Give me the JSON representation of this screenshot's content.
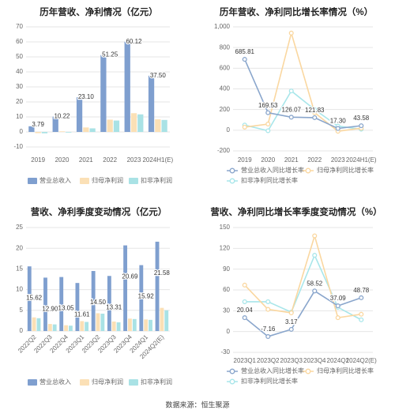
{
  "colors": {
    "revenue": "#7f9fcf",
    "net_profit": "#fbe0b6",
    "deducted_profit": "#a9e2e5",
    "revenue_line": "#8aa6cc",
    "net_line": "#fad7a0",
    "deducted_line": "#a8e6ea",
    "grid": "#e6e6e6",
    "axis_text": "#666666",
    "title_text": "#222222",
    "source_text": "#444444"
  },
  "source": "数据来源：恒生聚源",
  "chart_data": [
    {
      "type": "bar",
      "title": "历年营收、净利情况（亿元）",
      "categories": [
        "2019",
        "2020",
        "2021",
        "2022",
        "2023",
        "2024H1(E)"
      ],
      "ylim": [
        -10,
        70
      ],
      "yticks": [
        "-10",
        "0",
        "10",
        "20",
        "30",
        "40",
        "50",
        "60",
        "70"
      ],
      "series": [
        {
          "name": "营业总收入",
          "values": [
            3.79,
            10.22,
            23.1,
            51.25,
            60.12,
            37.5
          ],
          "labels": [
            "3.79",
            "10.22",
            "23.10",
            "51.25",
            "60.12",
            "37.50"
          ]
        },
        {
          "name": "归母净利润",
          "values": [
            -0.8,
            0.4,
            3.0,
            8.2,
            12.5,
            8.4
          ]
        },
        {
          "name": "扣非净利润",
          "values": [
            -0.9,
            -0.2,
            2.4,
            7.6,
            11.7,
            8.0
          ]
        }
      ]
    },
    {
      "type": "line",
      "title": "历年营收、净利同比增长率情况（%）",
      "categories": [
        "2019",
        "2020",
        "2021",
        "2022",
        "2023",
        "2024H1(E)"
      ],
      "ylim": [
        -200,
        1000
      ],
      "yticks": [
        "-200",
        "0",
        "200",
        "400",
        "600",
        "800",
        "1,000"
      ],
      "series": [
        {
          "name": "营业总收入同比增长率",
          "values": [
            685.81,
            169.53,
            126.07,
            121.83,
            17.3,
            43.58
          ],
          "labels": [
            "685.81",
            "169.53",
            "126.07",
            "121.83",
            "17.30",
            "43.58"
          ]
        },
        {
          "name": "归母净利同比增长率",
          "values": [
            30,
            60,
            940,
            170,
            -10,
            20
          ]
        },
        {
          "name": "扣非净利同比增长率",
          "values": [
            50,
            -5,
            380,
            200,
            40,
            10
          ]
        }
      ]
    },
    {
      "type": "bar",
      "title": "营收、净利季度变动情况（亿元）",
      "categories": [
        "2022Q2",
        "2022Q3",
        "2022Q4",
        "2023Q1",
        "2023Q2",
        "2023Q3",
        "2023Q4",
        "2024Q1",
        "2024Q2(E)"
      ],
      "ylim": [
        0,
        25
      ],
      "yticks": [
        "0",
        "5",
        "10",
        "15",
        "20",
        "25"
      ],
      "series": [
        {
          "name": "营业总收入",
          "values": [
            15.62,
            12.9,
            13.05,
            11.61,
            14.5,
            13.31,
            20.69,
            15.92,
            21.58
          ],
          "labels": [
            "15.62",
            "12.90",
            "13.05",
            "11.61",
            "14.50",
            "13.31",
            "20.69",
            "15.92",
            "21.58"
          ]
        },
        {
          "name": "归母净利润",
          "values": [
            3.3,
            1.7,
            1.4,
            2.4,
            4.3,
            2.3,
            3.0,
            2.8,
            5.6
          ]
        },
        {
          "name": "扣非净利润",
          "values": [
            3.1,
            1.6,
            1.3,
            2.2,
            4.2,
            2.1,
            2.9,
            2.7,
            5.0
          ]
        }
      ]
    },
    {
      "type": "line",
      "title": "营收、净利同比增长率季度变动情况（%）",
      "categories": [
        "2023Q1",
        "2023Q2",
        "2023Q3",
        "2023Q4",
        "2024Q1",
        "2024Q2(E)"
      ],
      "ylim": [
        -30,
        150
      ],
      "yticks": [
        "-30",
        "0",
        "30",
        "60",
        "90",
        "120",
        "150"
      ],
      "series": [
        {
          "name": "营业总收入同比增长率",
          "values": [
            20.04,
            -7.16,
            3.17,
            58.52,
            37.09,
            48.78
          ],
          "labels": [
            "20.04",
            "-7.16",
            "3.17",
            "58.52",
            "37.09",
            "48.78"
          ]
        },
        {
          "name": "归母净利同比增长率",
          "values": [
            67,
            32,
            27,
            138,
            20,
            25
          ]
        },
        {
          "name": "扣非净利同比增长率",
          "values": [
            43,
            43,
            28,
            110,
            35,
            17
          ]
        }
      ]
    }
  ]
}
